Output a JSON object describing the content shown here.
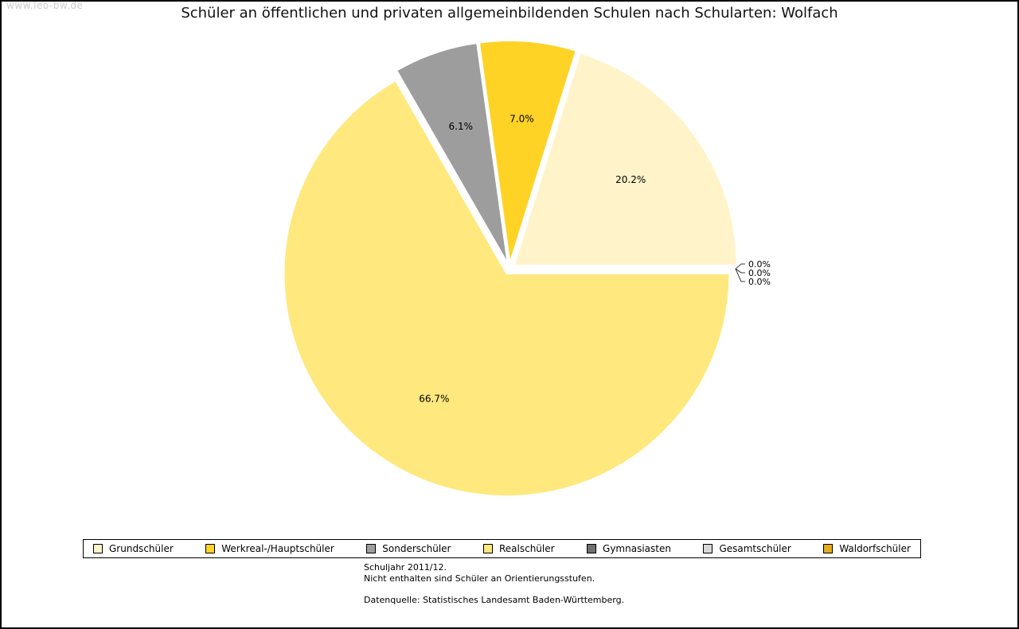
{
  "watermark": "www.leo-bw.de",
  "title": "Schüler an öffentlichen und privaten allgemeinbildenden Schulen nach Schularten: Wolfach",
  "chart_data": {
    "type": "pie",
    "title": "Schüler an öffentlichen und privaten allgemeinbildenden Schulen nach Schularten: Wolfach",
    "unit": "%",
    "start_angle_deg": 0,
    "direction": "counterclockwise",
    "legend_position": "bottom",
    "slices": [
      {
        "label": "Grundschüler",
        "value": 20.2,
        "color": "#FFF4C9"
      },
      {
        "label": "Werkreal-/Hauptschüler",
        "value": 7.0,
        "color": "#FFD226"
      },
      {
        "label": "Sonderschüler",
        "value": 6.1,
        "color": "#9D9D9D"
      },
      {
        "label": "Realschüler",
        "value": 66.7,
        "color": "#FFE87D"
      },
      {
        "label": "Gymnasiasten",
        "value": 0.0,
        "color": "#6F6F6F"
      },
      {
        "label": "Gesamtschüler",
        "value": 0.0,
        "color": "#D8D8D8"
      },
      {
        "label": "Waldorfschüler",
        "value": 0.0,
        "color": "#E6AC1E"
      }
    ]
  },
  "footnotes": {
    "line1": "Schuljahr 2011/12.",
    "line2": "Nicht enthalten sind Schüler an Orientierungsstufen.",
    "source": "Datenquelle: Statistisches Landesamt Baden-Württemberg."
  }
}
